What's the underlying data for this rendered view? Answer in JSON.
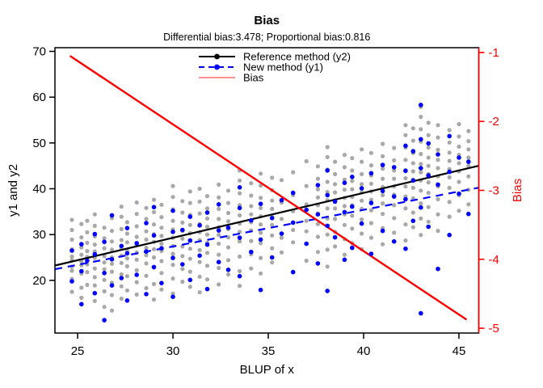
{
  "figure": {
    "background": "#ffffff"
  },
  "chart_data": {
    "type": "scatter",
    "title": "Bias",
    "subtitle": "Differential bias:3.478; Proportional bias:0.816",
    "xlabel": "BLUP of x",
    "ylabel_left": "y1 and y2",
    "ylabel_right": "Bias",
    "differential_bias": 3.478,
    "proportional_bias": 0.816,
    "xlim": [
      23.81,
      46.04
    ],
    "ylim_left": [
      8.5,
      70.8
    ],
    "ylim_right": [
      -5.07,
      -0.93
    ],
    "x_ticks": [
      25,
      30,
      35,
      40,
      45
    ],
    "y_ticks_left": [
      20,
      30,
      40,
      50,
      60,
      70
    ],
    "y_ticks_right": [
      -1,
      -2,
      -3,
      -4,
      -5
    ],
    "grid": false,
    "legend_position": "top-center",
    "colors": {
      "reference": "#000000",
      "new_method": "#0000ff",
      "bias": "#ff0000",
      "bias_legend": "#ff8080",
      "gray_points": "#a8a8a8",
      "right_axis": "#ff0000"
    },
    "legend": [
      {
        "label": "Reference method (y2)",
        "color": "#000000",
        "dash": "solid",
        "point": true
      },
      {
        "label": "New method (y1)",
        "color": "#0000ff",
        "dash": "dashed",
        "point": true
      },
      {
        "label": "Bias",
        "color": "#ff8080",
        "dash": "solid",
        "point": false
      }
    ],
    "lines": [
      {
        "name": "reference-fit",
        "axis": "left",
        "color": "#000000",
        "width": 2.2,
        "dash": null,
        "x": [
          23.81,
          46.04
        ],
        "slope": 0.98,
        "intercept": -0.1
      },
      {
        "name": "new-method-fit",
        "axis": "left",
        "color": "#0000ff",
        "width": 2.2,
        "dash": "9,7",
        "x": [
          23.81,
          46.04
        ],
        "slope": 0.8,
        "intercept": 3.4
      },
      {
        "name": "bias-line",
        "axis": "right",
        "color": "#ff0000",
        "width": 2.4,
        "dash": null,
        "x": [
          24.6,
          45.4
        ],
        "slope": -0.184,
        "intercept": 3.478
      }
    ],
    "series": [
      {
        "name": "Reference method (y2)",
        "color": "#a8a8a8",
        "radius": 2.6,
        "clusters": [
          {
            "x": 24.7,
            "y": [
              17.5,
              20.3,
              22.1,
              23.0,
              24.4,
              25.2,
              26.8,
              28.9,
              31.0,
              33.2
            ]
          },
          {
            "x": 25.2,
            "y": [
              16.2,
              18.4,
              21.5,
              23.3,
              24.1,
              25.6,
              27.2,
              29.4,
              32.3
            ]
          },
          {
            "x": 25.5,
            "y": [
              19.0,
              21.8,
              23.5,
              25.1,
              26.4,
              28.2,
              30.5,
              33.0
            ]
          },
          {
            "x": 25.9,
            "y": [
              15.5,
              18.9,
              20.7,
              22.6,
              24.9,
              26.3,
              27.8,
              29.6,
              31.9,
              34.4
            ]
          },
          {
            "x": 26.4,
            "y": [
              14.2,
              17.6,
              20.1,
              22.4,
              23.9,
              25.3,
              27.0,
              29.2,
              31.5
            ]
          },
          {
            "x": 26.8,
            "y": [
              13.4,
              16.8,
              19.5,
              21.9,
              23.6,
              25.0,
              26.7,
              28.5,
              30.8,
              33.6
            ]
          },
          {
            "x": 27.3,
            "y": [
              16.0,
              18.7,
              21.3,
              23.8,
              25.4,
              26.9,
              28.8,
              31.2,
              33.9,
              36.1
            ]
          },
          {
            "x": 27.6,
            "y": [
              17.8,
              20.9,
              23.1,
              24.8,
              26.5,
              28.3,
              30.2,
              32.7
            ]
          },
          {
            "x": 28.1,
            "y": [
              16.9,
              19.6,
              22.2,
              24.5,
              26.1,
              27.7,
              29.5,
              31.8,
              34.5,
              37.0
            ]
          },
          {
            "x": 28.6,
            "y": [
              18.3,
              21.0,
              23.7,
              25.5,
              27.1,
              28.9,
              30.7,
              33.4,
              35.8
            ]
          },
          {
            "x": 29.0,
            "y": [
              15.8,
              19.2,
              22.8,
              25.0,
              26.8,
              28.4,
              30.1,
              32.2,
              34.9,
              37.6
            ]
          },
          {
            "x": 29.4,
            "y": [
              18.0,
              21.6,
              24.2,
              26.4,
              28.0,
              29.7,
              31.5,
              33.8,
              36.5
            ]
          },
          {
            "x": 30.0,
            "y": [
              17.1,
              20.4,
              23.4,
              25.8,
              27.5,
              29.3,
              31.1,
              33.0,
              35.5,
              38.2,
              40.6
            ]
          },
          {
            "x": 30.5,
            "y": [
              19.7,
              22.5,
              25.3,
              27.4,
              29.1,
              30.8,
              32.6,
              34.8,
              37.3
            ]
          },
          {
            "x": 30.9,
            "y": [
              18.6,
              21.9,
              24.7,
              26.9,
              28.6,
              30.3,
              32.1,
              34.3,
              36.9,
              39.4
            ]
          },
          {
            "x": 31.4,
            "y": [
              17.4,
              20.8,
              24.0,
              26.6,
              28.8,
              30.5,
              32.3,
              34.6,
              37.2,
              40.0
            ]
          },
          {
            "x": 31.8,
            "y": [
              20.2,
              23.2,
              26.0,
              28.2,
              30.0,
              31.7,
              33.5,
              35.7,
              38.4
            ]
          },
          {
            "x": 32.4,
            "y": [
              19.1,
              22.7,
              25.6,
              28.0,
              29.9,
              31.6,
              33.4,
              35.6,
              38.1,
              40.9
            ]
          },
          {
            "x": 32.9,
            "y": [
              21.3,
              24.4,
              27.2,
              29.4,
              31.2,
              32.9,
              34.7,
              36.9,
              39.6
            ]
          },
          {
            "x": 33.5,
            "y": [
              18.8,
              22.0,
              25.2,
              28.5,
              30.6,
              32.4,
              34.2,
              36.4,
              39.0,
              41.8,
              44.0
            ]
          },
          {
            "x": 34.1,
            "y": [
              22.6,
              25.7,
              28.6,
              30.9,
              32.7,
              34.4,
              36.2,
              38.5,
              41.2
            ]
          },
          {
            "x": 34.6,
            "y": [
              21.5,
              24.9,
              28.1,
              30.4,
              32.2,
              34.0,
              35.8,
              38.0,
              40.7,
              43.3
            ]
          },
          {
            "x": 35.2,
            "y": [
              23.9,
              27.0,
              29.8,
              32.1,
              33.9,
              35.6,
              37.4,
              39.7,
              42.4
            ]
          },
          {
            "x": 35.7,
            "y": [
              26.1,
              29.3,
              33.4,
              37.0,
              41.9
            ]
          },
          {
            "x": 36.3,
            "y": [
              28.3,
              31.0,
              35.1,
              38.6,
              43.6
            ]
          },
          {
            "x": 37.0,
            "y": [
              24.3,
              30.7,
              33.0,
              36.6,
              40.6,
              46.0
            ]
          },
          {
            "x": 37.6,
            "y": [
              26.2,
              29.5,
              32.3,
              34.6,
              36.4,
              38.1,
              39.9,
              42.2,
              44.9
            ]
          },
          {
            "x": 38.1,
            "y": [
              23.0,
              26.7,
              30.0,
              33.5,
              35.7,
              37.5,
              39.3,
              41.5,
              44.2,
              46.9,
              49.1
            ]
          },
          {
            "x": 38.5,
            "y": [
              27.4,
              30.6,
              33.4,
              35.7,
              37.5,
              39.2,
              41.0,
              43.2,
              45.9
            ]
          },
          {
            "x": 39.0,
            "y": [
              25.6,
              29.0,
              32.1,
              34.4,
              36.2,
              38.0,
              39.8,
              42.0,
              44.7,
              47.4
            ]
          },
          {
            "x": 39.4,
            "y": [
              28.1,
              31.3,
              34.1,
              36.4,
              38.2,
              39.9,
              41.7,
              44.0,
              46.7
            ]
          },
          {
            "x": 39.9,
            "y": [
              26.8,
              30.2,
              33.3,
              35.6,
              37.4,
              39.2,
              41.0,
              43.2,
              45.9,
              48.6
            ]
          },
          {
            "x": 40.4,
            "y": [
              29.3,
              32.5,
              35.3,
              37.6,
              39.4,
              41.1,
              42.9,
              45.1,
              47.8
            ]
          },
          {
            "x": 41.0,
            "y": [
              27.9,
              31.4,
              34.5,
              36.8,
              38.6,
              40.4,
              42.2,
              44.4,
              47.1,
              49.8
            ]
          },
          {
            "x": 41.6,
            "y": [
              30.4,
              33.6,
              36.4,
              38.7,
              40.5,
              42.2,
              44.0,
              46.2,
              48.9
            ]
          },
          {
            "x": 42.2,
            "y": [
              28.7,
              32.2,
              35.7,
              38.3,
              40.5,
              42.3,
              44.1,
              46.3,
              49.0,
              51.7,
              53.9
            ]
          },
          {
            "x": 42.6,
            "y": [
              31.6,
              34.8,
              37.9,
              40.2,
              42.0,
              43.8,
              45.6,
              47.8,
              50.5,
              53.2
            ]
          },
          {
            "x": 43.0,
            "y": [
              29.9,
              33.5,
              36.8,
              39.6,
              41.8,
              43.6,
              45.4,
              47.6,
              50.3,
              53.0,
              55.7,
              57.9
            ]
          },
          {
            "x": 43.4,
            "y": [
              32.8,
              36.0,
              39.1,
              41.4,
              43.2,
              45.0,
              46.8,
              49.0,
              51.7,
              54.4
            ]
          },
          {
            "x": 43.9,
            "y": [
              30.8,
              34.4,
              37.7,
              40.5,
              42.7,
              44.5,
              46.3,
              48.5,
              51.2,
              53.9
            ]
          },
          {
            "x": 44.5,
            "y": [
              33.9,
              37.1,
              40.2,
              42.5,
              44.3,
              46.1,
              47.9,
              50.1,
              52.8
            ]
          },
          {
            "x": 45.0,
            "y": [
              35.2,
              38.6,
              41.5,
              43.8,
              45.6,
              47.4,
              49.2,
              51.4,
              54.1
            ]
          },
          {
            "x": 45.5,
            "y": [
              36.6,
              39.8,
              42.7,
              45.0,
              46.8,
              48.6,
              50.4,
              52.6
            ]
          }
        ]
      },
      {
        "name": "New method (y1)",
        "color": "#0000ff",
        "radius": 2.8,
        "clusters": [
          {
            "x": 24.7,
            "y": [
              19.8,
              26.5
            ]
          },
          {
            "x": 25.2,
            "y": [
              14.8,
              22.0,
              27.9
            ]
          },
          {
            "x": 25.5,
            "y": [
              24.3
            ]
          },
          {
            "x": 25.9,
            "y": [
              17.2,
              25.7,
              30.1
            ]
          },
          {
            "x": 26.4,
            "y": [
              11.3,
              21.6,
              28.4
            ]
          },
          {
            "x": 26.8,
            "y": [
              18.9,
              24.6,
              34.2
            ]
          },
          {
            "x": 27.3,
            "y": [
              20.5,
              27.5
            ]
          },
          {
            "x": 27.6,
            "y": [
              15.6,
              25.9,
              31.4
            ]
          },
          {
            "x": 28.1,
            "y": [
              21.2,
              28.1
            ]
          },
          {
            "x": 28.6,
            "y": [
              17.0,
              26.3,
              32.5
            ]
          },
          {
            "x": 29.0,
            "y": [
              22.9,
              29.8,
              36.0
            ]
          },
          {
            "x": 29.4,
            "y": [
              19.4,
              27.0
            ]
          },
          {
            "x": 30.0,
            "y": [
              16.4,
              24.9,
              30.6,
              35.2
            ]
          },
          {
            "x": 30.5,
            "y": [
              23.5,
              31.0
            ]
          },
          {
            "x": 30.9,
            "y": [
              20.1,
              28.7,
              33.9
            ]
          },
          {
            "x": 31.4,
            "y": [
              25.4,
              32.0
            ]
          },
          {
            "x": 31.8,
            "y": [
              18.1,
              27.8,
              34.8
            ]
          },
          {
            "x": 32.4,
            "y": [
              24.0,
              30.9,
              36.6
            ]
          },
          {
            "x": 32.9,
            "y": [
              22.3,
              31.5
            ]
          },
          {
            "x": 33.5,
            "y": [
              20.9,
              29.3,
              35.8,
              40.3
            ]
          },
          {
            "x": 34.1,
            "y": [
              26.2,
              33.1
            ]
          },
          {
            "x": 34.6,
            "y": [
              17.9,
              28.9,
              36.7
            ]
          },
          {
            "x": 35.2,
            "y": [
              25.0,
              33.6
            ]
          },
          {
            "x": 35.7,
            "y": [
              30.2,
              37.5
            ]
          },
          {
            "x": 36.3,
            "y": [
              21.8,
              32.6,
              39.1
            ]
          },
          {
            "x": 37.0,
            "y": [
              28.0,
              35.4
            ]
          },
          {
            "x": 37.6,
            "y": [
              23.7,
              34.4,
              40.8
            ]
          },
          {
            "x": 38.1,
            "y": [
              17.7,
              31.9,
              38.6,
              44.0
            ]
          },
          {
            "x": 38.5,
            "y": [
              29.4,
              37.2
            ]
          },
          {
            "x": 39.0,
            "y": [
              24.5,
              34.9,
              41.3
            ]
          },
          {
            "x": 39.4,
            "y": [
              27.1,
              36.1,
              42.6
            ]
          },
          {
            "x": 39.9,
            "y": [
              32.4,
              40.1
            ]
          },
          {
            "x": 40.4,
            "y": [
              25.8,
              36.9,
              43.4
            ]
          },
          {
            "x": 41.0,
            "y": [
              30.8,
              39.5,
              45.2
            ]
          },
          {
            "x": 41.6,
            "y": [
              28.5,
              38.3,
              44.7
            ]
          },
          {
            "x": 42.2,
            "y": [
              26.9,
              37.7,
              43.9,
              49.4
            ]
          },
          {
            "x": 42.6,
            "y": [
              33.0,
              41.8,
              48.2
            ]
          },
          {
            "x": 43.0,
            "y": [
              12.8,
              35.9,
              44.5,
              50.8,
              58.3
            ]
          },
          {
            "x": 43.4,
            "y": [
              31.7,
              42.9,
              49.9
            ]
          },
          {
            "x": 43.9,
            "y": [
              22.5,
              40.9,
              47.5
            ]
          },
          {
            "x": 44.5,
            "y": [
              29.9,
              43.7,
              51.5
            ]
          },
          {
            "x": 45.0,
            "y": [
              38.9,
              46.8
            ]
          },
          {
            "x": 45.5,
            "y": [
              34.5,
              45.9
            ]
          }
        ]
      }
    ]
  }
}
